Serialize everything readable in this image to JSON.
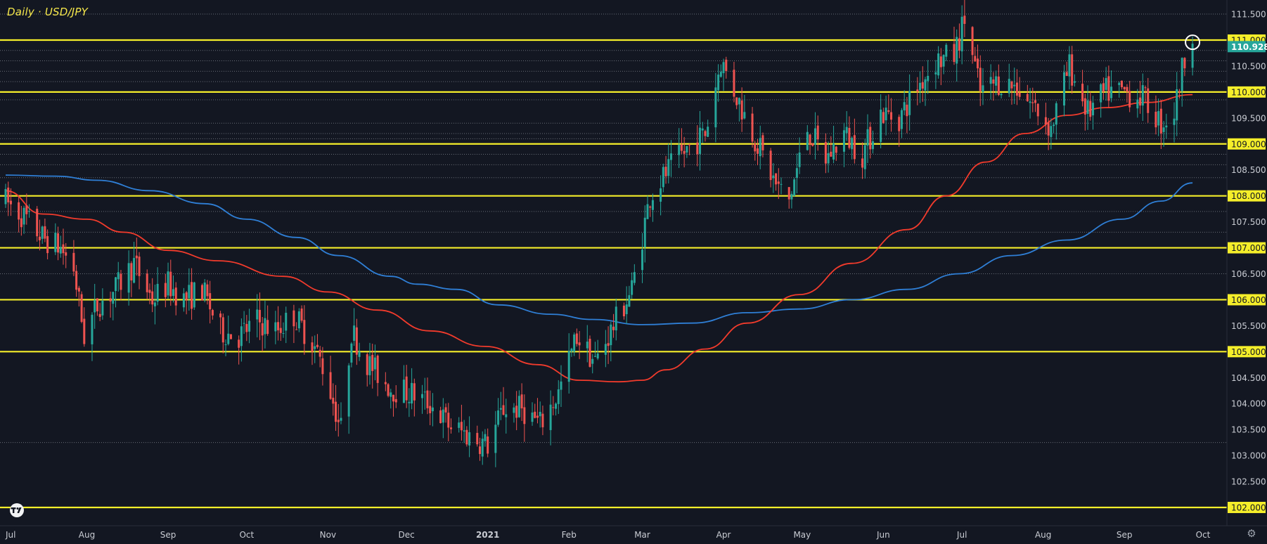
{
  "header": {
    "title": "Daily · USD/JPY"
  },
  "colors": {
    "background": "#131722",
    "up_candle": "#26a69a",
    "down_candle": "#ef5350",
    "ma_fast": "#f23b2c",
    "ma_slow": "#2f7fd6",
    "key_level": "#f5ee2a",
    "grid": "#8a8f99",
    "axis_text": "#c9ccd3",
    "price_tag_bg": "#26a69a",
    "key_tag_bg": "#f5ee2a"
  },
  "icons": {
    "logo": "tradingview-logo-icon",
    "settings": "gear-icon"
  },
  "chart_data": {
    "type": "candlestick",
    "title": "Daily · USD/JPY",
    "x_range": [
      "2020-07-01",
      "2021-10-10"
    ],
    "ylim": [
      101.8,
      111.8
    ],
    "y_ticks": [
      "111.500",
      "111.000",
      "110.500",
      "110.000",
      "109.500",
      "109.000",
      "108.500",
      "108.000",
      "107.500",
      "107.000",
      "106.500",
      "106.000",
      "105.500",
      "105.000",
      "104.500",
      "104.000",
      "103.500",
      "103.000",
      "102.500",
      "102.000"
    ],
    "highlighted_y_ticks": [
      "111.000",
      "110.000",
      "109.000",
      "108.000",
      "107.000",
      "106.000",
      "105.000",
      "102.000"
    ],
    "x_ticks": [
      {
        "label": "Jul",
        "date": "2020-07-01"
      },
      {
        "label": "Aug",
        "date": "2020-08-01"
      },
      {
        "label": "Sep",
        "date": "2020-09-01"
      },
      {
        "label": "Oct",
        "date": "2020-10-01"
      },
      {
        "label": "Nov",
        "date": "2020-11-01"
      },
      {
        "label": "Dec",
        "date": "2020-12-01"
      },
      {
        "label": "2021",
        "date": "2021-01-01"
      },
      {
        "label": "Feb",
        "date": "2021-02-01"
      },
      {
        "label": "Mar",
        "date": "2021-03-01"
      },
      {
        "label": "Apr",
        "date": "2021-04-01"
      },
      {
        "label": "May",
        "date": "2021-05-01"
      },
      {
        "label": "Jun",
        "date": "2021-06-01"
      },
      {
        "label": "Jul",
        "date": "2021-07-01"
      },
      {
        "label": "Aug",
        "date": "2021-08-01"
      },
      {
        "label": "Sep",
        "date": "2021-09-01"
      },
      {
        "label": "Oct",
        "date": "2021-10-01"
      }
    ],
    "key_levels": [
      111.0,
      110.0,
      109.0,
      108.0,
      107.0,
      106.0,
      105.0,
      102.0
    ],
    "minor_levels": [
      110.8,
      110.6,
      110.4,
      110.2,
      109.85,
      109.4,
      109.2,
      109.1,
      108.8,
      108.6,
      108.35,
      107.7,
      107.3,
      106.5,
      103.25
    ],
    "last_price": {
      "label": "110.928",
      "value": 110.928
    },
    "highlight_circle": {
      "date": "2021-09-27",
      "value": 110.93
    },
    "ma_fast": {
      "color": "#f23b2c",
      "points": [
        [
          "2020-07-01",
          108.1
        ],
        [
          "2020-07-15",
          107.65
        ],
        [
          "2020-08-01",
          107.55
        ],
        [
          "2020-08-15",
          107.3
        ],
        [
          "2020-09-01",
          106.95
        ],
        [
          "2020-09-20",
          106.75
        ],
        [
          "2020-10-15",
          106.45
        ],
        [
          "2020-11-01",
          106.15
        ],
        [
          "2020-11-20",
          105.8
        ],
        [
          "2020-12-10",
          105.4
        ],
        [
          "2020-12-31",
          105.1
        ],
        [
          "2021-01-20",
          104.75
        ],
        [
          "2021-02-05",
          104.45
        ],
        [
          "2021-02-20",
          104.42
        ],
        [
          "2021-03-01",
          104.45
        ],
        [
          "2021-03-10",
          104.65
        ],
        [
          "2021-03-25",
          105.05
        ],
        [
          "2021-04-10",
          105.55
        ],
        [
          "2021-04-30",
          106.1
        ],
        [
          "2021-05-20",
          106.7
        ],
        [
          "2021-06-10",
          107.35
        ],
        [
          "2021-06-25",
          108.0
        ],
        [
          "2021-07-10",
          108.65
        ],
        [
          "2021-07-25",
          109.2
        ],
        [
          "2021-08-10",
          109.55
        ],
        [
          "2021-08-25",
          109.7
        ],
        [
          "2021-09-10",
          109.8
        ],
        [
          "2021-09-27",
          109.95
        ]
      ]
    },
    "ma_slow": {
      "color": "#2f7fd6",
      "points": [
        [
          "2020-07-01",
          108.4
        ],
        [
          "2020-07-20",
          108.38
        ],
        [
          "2020-08-05",
          108.3
        ],
        [
          "2020-08-25",
          108.1
        ],
        [
          "2020-09-15",
          107.85
        ],
        [
          "2020-10-01",
          107.55
        ],
        [
          "2020-10-20",
          107.2
        ],
        [
          "2020-11-05",
          106.85
        ],
        [
          "2020-11-25",
          106.45
        ],
        [
          "2020-12-05",
          106.3
        ],
        [
          "2020-12-20",
          106.2
        ],
        [
          "2021-01-05",
          105.9
        ],
        [
          "2021-01-25",
          105.72
        ],
        [
          "2021-02-10",
          105.62
        ],
        [
          "2021-03-01",
          105.52
        ],
        [
          "2021-03-20",
          105.55
        ],
        [
          "2021-04-10",
          105.75
        ],
        [
          "2021-04-30",
          105.82
        ],
        [
          "2021-05-20",
          106.0
        ],
        [
          "2021-06-10",
          106.2
        ],
        [
          "2021-06-30",
          106.5
        ],
        [
          "2021-07-20",
          106.85
        ],
        [
          "2021-08-10",
          107.15
        ],
        [
          "2021-08-31",
          107.55
        ],
        [
          "2021-09-15",
          107.9
        ],
        [
          "2021-09-27",
          108.25
        ]
      ]
    },
    "price_path": [
      [
        "2020-07-01",
        107.9
      ],
      [
        "2020-07-08",
        107.6
      ],
      [
        "2020-07-15",
        107.2
      ],
      [
        "2020-07-22",
        107.0
      ],
      [
        "2020-07-27",
        106.6
      ],
      [
        "2020-07-31",
        105.3
      ],
      [
        "2020-08-05",
        105.9
      ],
      [
        "2020-08-12",
        106.2
      ],
      [
        "2020-08-19",
        106.7
      ],
      [
        "2020-08-26",
        106.0
      ],
      [
        "2020-09-01",
        106.3
      ],
      [
        "2020-09-07",
        106.0
      ],
      [
        "2020-09-14",
        106.2
      ],
      [
        "2020-09-21",
        105.4
      ],
      [
        "2020-09-28",
        105.3
      ],
      [
        "2020-10-05",
        105.6
      ],
      [
        "2020-10-12",
        105.4
      ],
      [
        "2020-10-19",
        105.7
      ],
      [
        "2020-10-26",
        105.2
      ],
      [
        "2020-10-31",
        104.6
      ],
      [
        "2020-11-06",
        103.5
      ],
      [
        "2020-11-10",
        105.4
      ],
      [
        "2020-11-16",
        104.8
      ],
      [
        "2020-11-25",
        104.3
      ],
      [
        "2020-12-03",
        104.2
      ],
      [
        "2020-12-10",
        104.0
      ],
      [
        "2020-12-17",
        103.6
      ],
      [
        "2020-12-24",
        103.4
      ],
      [
        "2021-01-01",
        103.2
      ],
      [
        "2021-01-07",
        103.9
      ],
      [
        "2021-01-14",
        103.9
      ],
      [
        "2021-01-21",
        103.6
      ],
      [
        "2021-01-28",
        104.2
      ],
      [
        "2021-02-04",
        105.3
      ],
      [
        "2021-02-11",
        104.8
      ],
      [
        "2021-02-18",
        105.5
      ],
      [
        "2021-02-25",
        106.2
      ],
      [
        "2021-03-04",
        108.0
      ],
      [
        "2021-03-11",
        108.5
      ],
      [
        "2021-03-18",
        108.9
      ],
      [
        "2021-03-25",
        109.2
      ],
      [
        "2021-03-31",
        110.6
      ],
      [
        "2021-04-07",
        109.8
      ],
      [
        "2021-04-14",
        109.0
      ],
      [
        "2021-04-21",
        108.2
      ],
      [
        "2021-04-26",
        107.9
      ],
      [
        "2021-05-03",
        109.3
      ],
      [
        "2021-05-10",
        108.7
      ],
      [
        "2021-05-17",
        109.2
      ],
      [
        "2021-05-24",
        108.8
      ],
      [
        "2021-05-31",
        109.6
      ],
      [
        "2021-06-07",
        109.5
      ],
      [
        "2021-06-14",
        110.1
      ],
      [
        "2021-06-21",
        110.6
      ],
      [
        "2021-06-28",
        110.7
      ],
      [
        "2021-07-02",
        111.4
      ],
      [
        "2021-07-08",
        110.0
      ],
      [
        "2021-07-15",
        110.2
      ],
      [
        "2021-07-22",
        110.1
      ],
      [
        "2021-07-29",
        109.7
      ],
      [
        "2021-08-04",
        109.3
      ],
      [
        "2021-08-11",
        110.5
      ],
      [
        "2021-08-18",
        109.6
      ],
      [
        "2021-08-25",
        110.0
      ],
      [
        "2021-09-01",
        110.0
      ],
      [
        "2021-09-08",
        109.9
      ],
      [
        "2021-09-15",
        109.4
      ],
      [
        "2021-09-20",
        109.6
      ],
      [
        "2021-09-24",
        110.7
      ],
      [
        "2021-09-27",
        110.93
      ]
    ]
  }
}
